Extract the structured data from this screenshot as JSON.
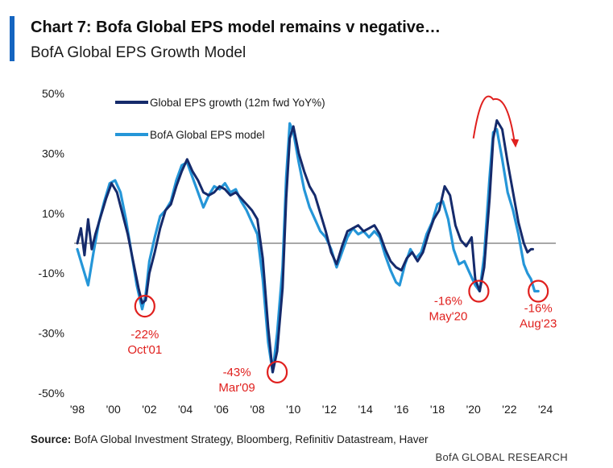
{
  "header": {
    "title": "Chart 7: Bofa Global EPS model remains v negative…",
    "subtitle": "BofA Global EPS Growth Model"
  },
  "footer": {
    "source_label": "Source:",
    "source_text": "BofA Global Investment Strategy, Bloomberg, Refinitiv Datastream, Haver",
    "brand": "BofA GLOBAL RESEARCH"
  },
  "colors": {
    "accent": "#1565c0",
    "actual": "#152a6b",
    "model": "#2596d8",
    "annotation": "#e0201e",
    "zero_line": "#8c8c8c"
  },
  "chart_data": {
    "type": "line",
    "x_type": "year",
    "xlim": [
      1998,
      2024.8
    ],
    "ylim": [
      -50,
      50
    ],
    "y_ticks": [
      50,
      30,
      10,
      -10,
      -30,
      -50
    ],
    "y_tick_labels": [
      "50%",
      "30%",
      "10%",
      "-10%",
      "-30%",
      "-50%"
    ],
    "x_ticks": [
      1998,
      2000,
      2002,
      2004,
      2006,
      2008,
      2010,
      2012,
      2014,
      2016,
      2018,
      2020,
      2022,
      2024
    ],
    "x_tick_labels": [
      "'98",
      "'00",
      "'02",
      "'04",
      "'06",
      "'08",
      "'10",
      "'12",
      "'14",
      "'16",
      "'18",
      "'20",
      "'22",
      "'24"
    ],
    "reference_line_y": 0,
    "legend": [
      "Global EPS growth (12m fwd YoY%)",
      "BofA Global EPS model"
    ],
    "legend_position": "top-left",
    "series": [
      {
        "name": "Global EPS growth (12m fwd YoY%)",
        "points": [
          [
            1998.0,
            0
          ],
          [
            1998.2,
            5
          ],
          [
            1998.4,
            -4
          ],
          [
            1998.6,
            8
          ],
          [
            1998.8,
            -2
          ],
          [
            1999.0,
            3
          ],
          [
            1999.3,
            9
          ],
          [
            1999.6,
            15
          ],
          [
            1999.9,
            20
          ],
          [
            2000.2,
            17
          ],
          [
            2000.5,
            10
          ],
          [
            2000.8,
            3
          ],
          [
            2001.1,
            -6
          ],
          [
            2001.4,
            -15
          ],
          [
            2001.6,
            -20
          ],
          [
            2001.8,
            -19
          ],
          [
            2002.0,
            -10
          ],
          [
            2002.3,
            -3
          ],
          [
            2002.6,
            5
          ],
          [
            2002.9,
            11
          ],
          [
            2003.2,
            13
          ],
          [
            2003.5,
            19
          ],
          [
            2003.8,
            24
          ],
          [
            2004.1,
            28
          ],
          [
            2004.4,
            24
          ],
          [
            2004.7,
            21
          ],
          [
            2005.0,
            17
          ],
          [
            2005.3,
            16
          ],
          [
            2005.6,
            17
          ],
          [
            2005.9,
            19
          ],
          [
            2006.2,
            18
          ],
          [
            2006.5,
            16
          ],
          [
            2006.8,
            17
          ],
          [
            2007.1,
            15
          ],
          [
            2007.4,
            13
          ],
          [
            2007.7,
            11
          ],
          [
            2008.0,
            8
          ],
          [
            2008.3,
            -5
          ],
          [
            2008.6,
            -28
          ],
          [
            2008.85,
            -43
          ],
          [
            2009.1,
            -36
          ],
          [
            2009.4,
            -15
          ],
          [
            2009.6,
            15
          ],
          [
            2009.8,
            35
          ],
          [
            2010.0,
            39
          ],
          [
            2010.3,
            30
          ],
          [
            2010.6,
            24
          ],
          [
            2010.9,
            19
          ],
          [
            2011.2,
            16
          ],
          [
            2011.5,
            10
          ],
          [
            2011.8,
            4
          ],
          [
            2012.1,
            -3
          ],
          [
            2012.4,
            -7
          ],
          [
            2012.7,
            -1
          ],
          [
            2013.0,
            4
          ],
          [
            2013.3,
            5
          ],
          [
            2013.6,
            6
          ],
          [
            2013.9,
            4
          ],
          [
            2014.2,
            5
          ],
          [
            2014.5,
            6
          ],
          [
            2014.8,
            3
          ],
          [
            2015.1,
            -2
          ],
          [
            2015.4,
            -6
          ],
          [
            2015.7,
            -8
          ],
          [
            2016.0,
            -9
          ],
          [
            2016.3,
            -5
          ],
          [
            2016.6,
            -3
          ],
          [
            2016.9,
            -6
          ],
          [
            2017.2,
            -3
          ],
          [
            2017.5,
            3
          ],
          [
            2017.8,
            8
          ],
          [
            2018.1,
            11
          ],
          [
            2018.4,
            19
          ],
          [
            2018.7,
            16
          ],
          [
            2019.0,
            6
          ],
          [
            2019.3,
            1
          ],
          [
            2019.6,
            -1
          ],
          [
            2019.9,
            2
          ],
          [
            2020.1,
            -12
          ],
          [
            2020.35,
            -16
          ],
          [
            2020.6,
            -8
          ],
          [
            2020.9,
            15
          ],
          [
            2021.1,
            35
          ],
          [
            2021.3,
            41
          ],
          [
            2021.6,
            38
          ],
          [
            2021.9,
            27
          ],
          [
            2022.2,
            17
          ],
          [
            2022.5,
            7
          ],
          [
            2022.8,
            0
          ],
          [
            2023.0,
            -3
          ],
          [
            2023.2,
            -2
          ],
          [
            2023.3,
            -2
          ]
        ]
      },
      {
        "name": "BofA Global EPS model",
        "points": [
          [
            1998.0,
            -2
          ],
          [
            1998.3,
            -8
          ],
          [
            1998.6,
            -14
          ],
          [
            1998.9,
            -3
          ],
          [
            1999.2,
            7
          ],
          [
            1999.5,
            14
          ],
          [
            1999.8,
            20
          ],
          [
            2000.1,
            21
          ],
          [
            2000.4,
            17
          ],
          [
            2000.7,
            8
          ],
          [
            2001.0,
            -3
          ],
          [
            2001.3,
            -14
          ],
          [
            2001.6,
            -22
          ],
          [
            2001.8,
            -17
          ],
          [
            2002.0,
            -6
          ],
          [
            2002.3,
            2
          ],
          [
            2002.6,
            9
          ],
          [
            2002.9,
            11
          ],
          [
            2003.2,
            14
          ],
          [
            2003.5,
            21
          ],
          [
            2003.8,
            26
          ],
          [
            2004.1,
            27
          ],
          [
            2004.4,
            22
          ],
          [
            2004.7,
            17
          ],
          [
            2005.0,
            12
          ],
          [
            2005.3,
            16
          ],
          [
            2005.6,
            19
          ],
          [
            2005.9,
            18
          ],
          [
            2006.2,
            20
          ],
          [
            2006.5,
            17
          ],
          [
            2006.8,
            18
          ],
          [
            2007.1,
            14
          ],
          [
            2007.4,
            11
          ],
          [
            2007.7,
            7
          ],
          [
            2008.0,
            3
          ],
          [
            2008.3,
            -12
          ],
          [
            2008.6,
            -33
          ],
          [
            2008.85,
            -43
          ],
          [
            2009.1,
            -30
          ],
          [
            2009.4,
            -8
          ],
          [
            2009.6,
            22
          ],
          [
            2009.8,
            40
          ],
          [
            2010.0,
            37
          ],
          [
            2010.3,
            27
          ],
          [
            2010.6,
            18
          ],
          [
            2010.9,
            12
          ],
          [
            2011.2,
            8
          ],
          [
            2011.5,
            4
          ],
          [
            2011.8,
            2
          ],
          [
            2012.1,
            -2
          ],
          [
            2012.4,
            -8
          ],
          [
            2012.7,
            -3
          ],
          [
            2013.0,
            2
          ],
          [
            2013.3,
            5
          ],
          [
            2013.6,
            3
          ],
          [
            2013.9,
            4
          ],
          [
            2014.2,
            2
          ],
          [
            2014.5,
            4
          ],
          [
            2014.8,
            2
          ],
          [
            2015.1,
            -4
          ],
          [
            2015.4,
            -9
          ],
          [
            2015.7,
            -13
          ],
          [
            2015.9,
            -14
          ],
          [
            2016.2,
            -7
          ],
          [
            2016.5,
            -2
          ],
          [
            2016.8,
            -5
          ],
          [
            2017.1,
            -3
          ],
          [
            2017.4,
            3
          ],
          [
            2017.7,
            7
          ],
          [
            2018.0,
            13
          ],
          [
            2018.3,
            14
          ],
          [
            2018.6,
            8
          ],
          [
            2018.9,
            -2
          ],
          [
            2019.2,
            -7
          ],
          [
            2019.5,
            -6
          ],
          [
            2019.8,
            -10
          ],
          [
            2020.1,
            -14
          ],
          [
            2020.35,
            -16
          ],
          [
            2020.6,
            -4
          ],
          [
            2020.9,
            22
          ],
          [
            2021.1,
            37
          ],
          [
            2021.3,
            38
          ],
          [
            2021.6,
            28
          ],
          [
            2021.9,
            17
          ],
          [
            2022.2,
            11
          ],
          [
            2022.5,
            3
          ],
          [
            2022.8,
            -7
          ],
          [
            2023.0,
            -10
          ],
          [
            2023.2,
            -12
          ],
          [
            2023.4,
            -16
          ],
          [
            2023.6,
            -16
          ]
        ]
      }
    ],
    "annotations": [
      {
        "label_value": "-22%",
        "label_date": "Oct'01",
        "x": 2001.75,
        "y": -21
      },
      {
        "label_value": "-43%",
        "label_date": "Mar'09",
        "x": 2009.1,
        "y": -43
      },
      {
        "label_value": "-16%",
        "label_date": "May'20",
        "x": 2020.3,
        "y": -16
      },
      {
        "label_value": "-16%",
        "label_date": "Aug'23",
        "x": 2023.6,
        "y": -16
      }
    ],
    "arrow": {
      "from": [
        2020.0,
        35
      ],
      "peak": [
        2021.1,
        48
      ],
      "to": [
        2022.3,
        33
      ]
    }
  }
}
